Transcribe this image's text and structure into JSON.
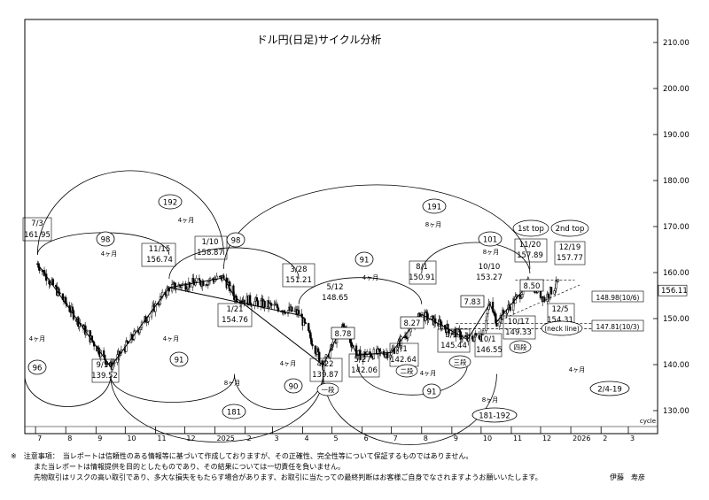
{
  "chart_data": {
    "type": "candlestick",
    "title": "ドル円(日足)サイクル分析",
    "ylim": [
      125,
      215
    ],
    "y_ticks": [
      "210.00",
      "200.00",
      "190.00",
      "180.00",
      "170.00",
      "160.00",
      "150.00",
      "140.00",
      "130.00"
    ],
    "last_price": "156.11",
    "x_tick_labels": [
      "7",
      "8",
      "9",
      "10",
      "11",
      "12",
      "2025",
      "2",
      "3",
      "4",
      "5",
      "6",
      "7",
      "8",
      "9",
      "10",
      "11",
      "12",
      "2026",
      "2",
      "3"
    ],
    "x_axis_caption": "cycle",
    "price_path": [
      {
        "date": "2024-07-03",
        "price": 161.95
      },
      {
        "date": "2024-09-16",
        "price": 139.52
      },
      {
        "date": "2024-11-15",
        "price": 156.74
      },
      {
        "date": "2025-01-10",
        "price": 158.87
      },
      {
        "date": "2025-01-21",
        "price": 154.76
      },
      {
        "date": "2025-03-28",
        "price": 151.21
      },
      {
        "date": "2025-04-22",
        "price": 139.87
      },
      {
        "date": "2025-05-12",
        "price": 148.65
      },
      {
        "date": "2025-05-27",
        "price": 142.06
      },
      {
        "date": "2025-07-01",
        "price": 142.64
      },
      {
        "date": "2025-08-01",
        "price": 150.91
      },
      {
        "date": "2025-09-17",
        "price": 145.44
      },
      {
        "date": "2025-10-01",
        "price": 146.55
      },
      {
        "date": "2025-10-10",
        "price": 153.27
      },
      {
        "date": "2025-10-17",
        "price": 149.33
      },
      {
        "date": "2025-11-20",
        "price": 157.89
      },
      {
        "date": "2025-12-05",
        "price": 154.31
      },
      {
        "date": "2025-12-19",
        "price": 157.77
      }
    ],
    "annotations": [
      {
        "text": "7/3",
        "date": "2024-07-03",
        "price": 161.95
      },
      {
        "text": "161.95",
        "date": "2024-07-03",
        "price": 161.95
      },
      {
        "text": "9/16",
        "date": "2024-09-16",
        "price": 139.52
      },
      {
        "text": "139.52",
        "date": "2024-09-16",
        "price": 139.52
      },
      {
        "text": "11/15",
        "date": "2024-11-15",
        "price": 156.74
      },
      {
        "text": "156.74",
        "date": "2024-11-15",
        "price": 156.74
      },
      {
        "text": "1/10",
        "date": "2025-01-10",
        "price": 158.87
      },
      {
        "text": "158.87",
        "date": "2025-01-10",
        "price": 158.87
      },
      {
        "text": "1/21",
        "date": "2025-01-21",
        "price": 154.76
      },
      {
        "text": "154.76",
        "date": "2025-01-21",
        "price": 154.76
      },
      {
        "text": "3/28",
        "date": "2025-03-28",
        "price": 151.21
      },
      {
        "text": "151.21",
        "date": "2025-03-28",
        "price": 151.21
      },
      {
        "text": "4/22",
        "date": "2025-04-22",
        "price": 139.87
      },
      {
        "text": "139.87",
        "date": "2025-04-22",
        "price": 139.87
      },
      {
        "text": "5/12",
        "date": "2025-05-12",
        "price": 148.65
      },
      {
        "text": "148.65",
        "date": "2025-05-12",
        "price": 148.65
      },
      {
        "text": "5/27",
        "date": "2025-05-27",
        "price": 142.06
      },
      {
        "text": "142.06",
        "date": "2025-05-27",
        "price": 142.06
      },
      {
        "text": "7/1",
        "date": "2025-07-01",
        "price": 142.64
      },
      {
        "text": "142.64",
        "date": "2025-07-01",
        "price": 142.64
      },
      {
        "text": "8/1",
        "date": "2025-08-01",
        "price": 150.91
      },
      {
        "text": "150.91",
        "date": "2025-08-01",
        "price": 150.91
      },
      {
        "text": "9/17",
        "date": "2025-09-17",
        "price": 145.44
      },
      {
        "text": "145.44",
        "date": "2025-09-17",
        "price": 145.44
      },
      {
        "text": "10/1",
        "date": "2025-10-01",
        "price": 146.55
      },
      {
        "text": "146.55",
        "date": "2025-10-01",
        "price": 146.55
      },
      {
        "text": "10/10",
        "date": "2025-10-10",
        "price": 153.27
      },
      {
        "text": "153.27",
        "date": "2025-10-10",
        "price": 153.27
      },
      {
        "text": "10/17",
        "date": "2025-10-17",
        "price": 149.33
      },
      {
        "text": "149.33",
        "date": "2025-10-17",
        "price": 149.33
      },
      {
        "text": "11/20",
        "date": "2025-11-20",
        "price": 157.89
      },
      {
        "text": "157.89",
        "date": "2025-11-20",
        "price": 157.89
      },
      {
        "text": "12/5",
        "date": "2025-12-05",
        "price": 154.31
      },
      {
        "text": "154.31",
        "date": "2025-12-05",
        "price": 154.31
      },
      {
        "text": "12/19",
        "date": "2025-12-19",
        "price": 157.77
      },
      {
        "text": "157.77",
        "date": "2025-12-19",
        "price": 157.77
      },
      {
        "text": "1st top",
        "date": "2025-11-20",
        "price": 157.89
      },
      {
        "text": "2nd top",
        "date": "2025-12-19",
        "price": 157.77
      }
    ],
    "cycle_counts": [
      "98",
      "192",
      "98",
      "91",
      "191",
      "101",
      "96",
      "91",
      "90",
      "181",
      "91",
      "181-192",
      "2/4-19"
    ],
    "cycle_durations": [
      "4ヶ月",
      "4ヶ月",
      "8ヶ月",
      "4ヶ月",
      "8ヶ月",
      "4ヶ月",
      "4ヶ月",
      "8ヶ月",
      "4ヶ月",
      "4ヶ月",
      "8ヶ月",
      "4ヶ月"
    ],
    "box_values": [
      "8.78",
      "8.27",
      "7.83",
      "8.50"
    ],
    "wave_labels": [
      "一段",
      "二段",
      "三段",
      "四段"
    ],
    "neckline_label": "(neck line)",
    "level_labels": [
      "148.98(10/6)",
      "147.81(10/3)"
    ]
  },
  "footer": {
    "line1": "※　注意事項：　当レポートは信頼性のある情報等に基づいて作成しておりますが、その正確性、完全性等について保証するものではありません。",
    "line2": "また当レポートは情報提供を目的としたものであり、その結果については一切責任を負いません。",
    "line3": "先物取引はリスクの高い取引であり、多大な損失をもたらす場合があります、お取引に当たっての最終判断はお客様ご自身でなされますようお願いいたします。",
    "author": "伊藤　寿彦"
  }
}
